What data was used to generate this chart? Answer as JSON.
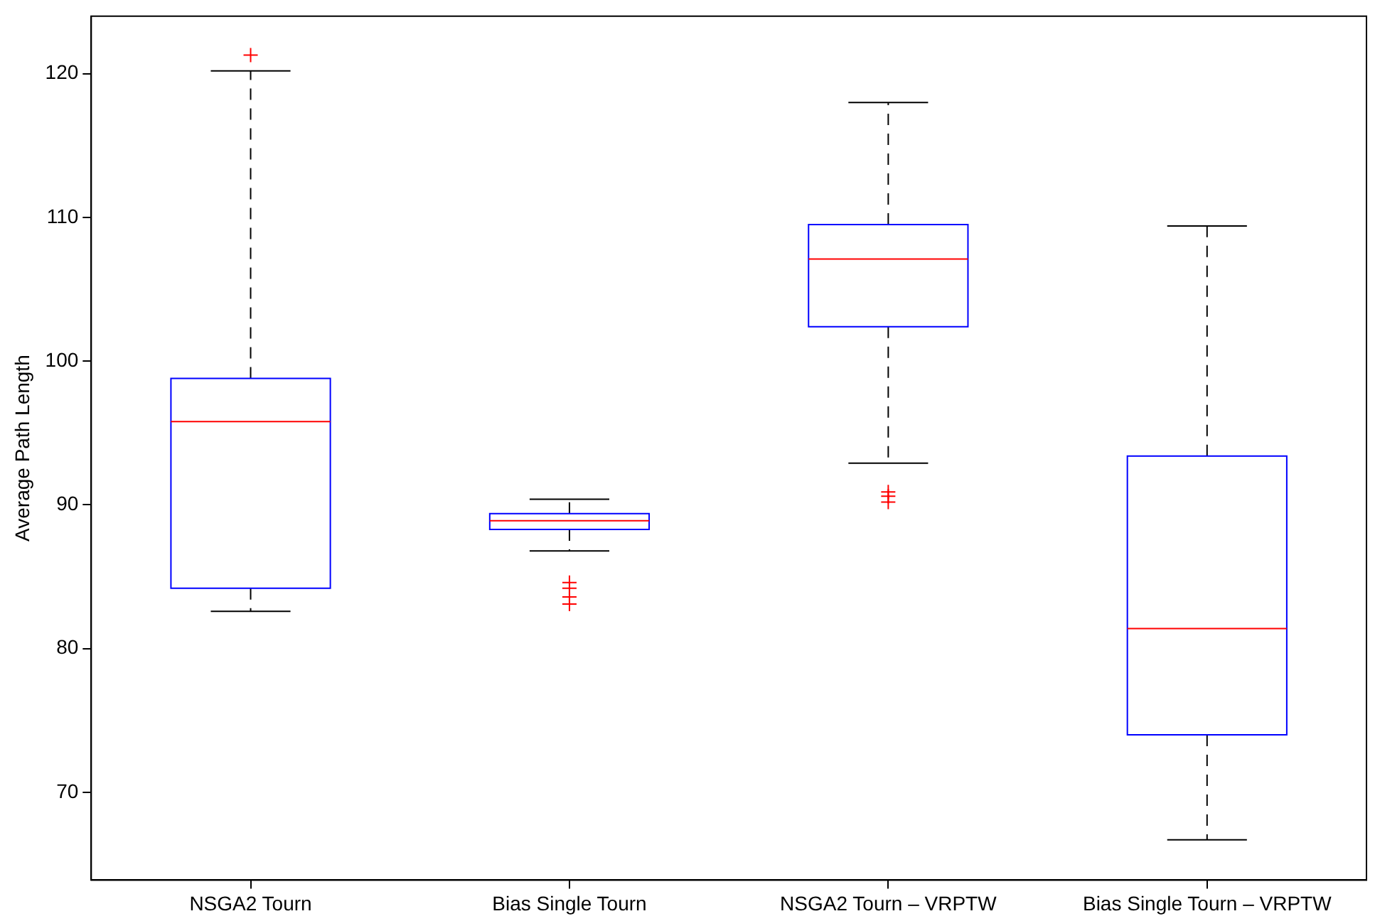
{
  "chart_data": {
    "type": "box",
    "ylabel": "Average Path Length",
    "categories": [
      "NSGA2 Tourn",
      "Bias Single Tourn",
      "NSGA2 Tourn – VRPTW",
      "Bias Single Tourn – VRPTW"
    ],
    "ylim": [
      63.9,
      124
    ],
    "yticks": [
      70,
      80,
      90,
      100,
      110,
      120
    ],
    "marker": "cross",
    "series": [
      {
        "color": "#0000ff",
        "boxes": [
          {
            "low": 82.6,
            "q1": 84.2,
            "median": 95.8,
            "q3": 98.8,
            "high": 120.2,
            "outliers": [
              121.3
            ]
          },
          {
            "low": 86.8,
            "q1": 88.3,
            "median": 88.9,
            "q3": 89.4,
            "high": 90.4,
            "outliers": [
              84.6,
              84.2,
              83.6,
              83.1
            ]
          },
          {
            "low": 92.9,
            "q1": 102.4,
            "median": 107.1,
            "q3": 109.5,
            "high": 118.0,
            "outliers": [
              90.9,
              90.6,
              90.2
            ]
          },
          {
            "low": 66.7,
            "q1": 74.0,
            "median": 81.4,
            "q3": 93.4,
            "high": 109.4
          }
        ]
      }
    ]
  }
}
